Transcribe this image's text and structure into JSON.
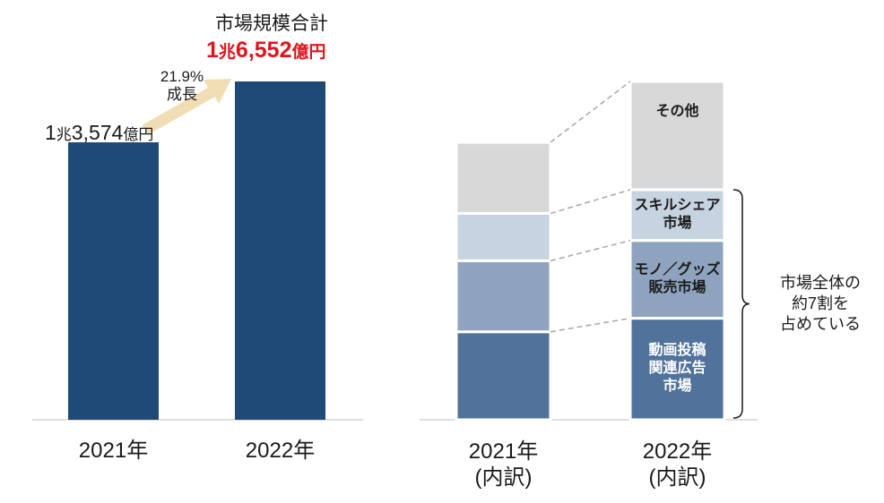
{
  "chart_data": [
    {
      "type": "bar",
      "categories": [
        "2021年",
        "2022年"
      ],
      "values": [
        13574,
        16552
      ],
      "value_labels": [
        "1兆3,574億円",
        "1兆6,552億円"
      ],
      "title": "市場規模合計",
      "growth_label": [
        "21.9%",
        "成長"
      ],
      "colors": {
        "bar": "#1f4a78",
        "highlight_value": "#e0141e",
        "arrow": "#f1ddb3"
      }
    },
    {
      "type": "bar",
      "stacked": true,
      "categories": [
        "2021年\n(内訳)",
        "2022年\n(内訳)"
      ],
      "series": [
        {
          "name": "動画投稿関連広告市場",
          "values": [
            26,
            30
          ],
          "color": "#50729b"
        },
        {
          "name": "モノ／グッズ販売市場",
          "values": [
            21,
            23
          ],
          "color": "#8da3be"
        },
        {
          "name": "スキルシェア市場",
          "values": [
            14,
            15
          ],
          "color": "#c6d3e0"
        },
        {
          "name": "その他",
          "values": [
            21,
            32
          ],
          "color": "#d8d8d8"
        }
      ],
      "segment_labels": [
        "動画投稿\n関連広告\n市場",
        "モノ／グッズ\n販売市場",
        "スキルシェア\n市場",
        "その他"
      ],
      "note": "市場全体の\n約7割を\n占めている"
    }
  ]
}
